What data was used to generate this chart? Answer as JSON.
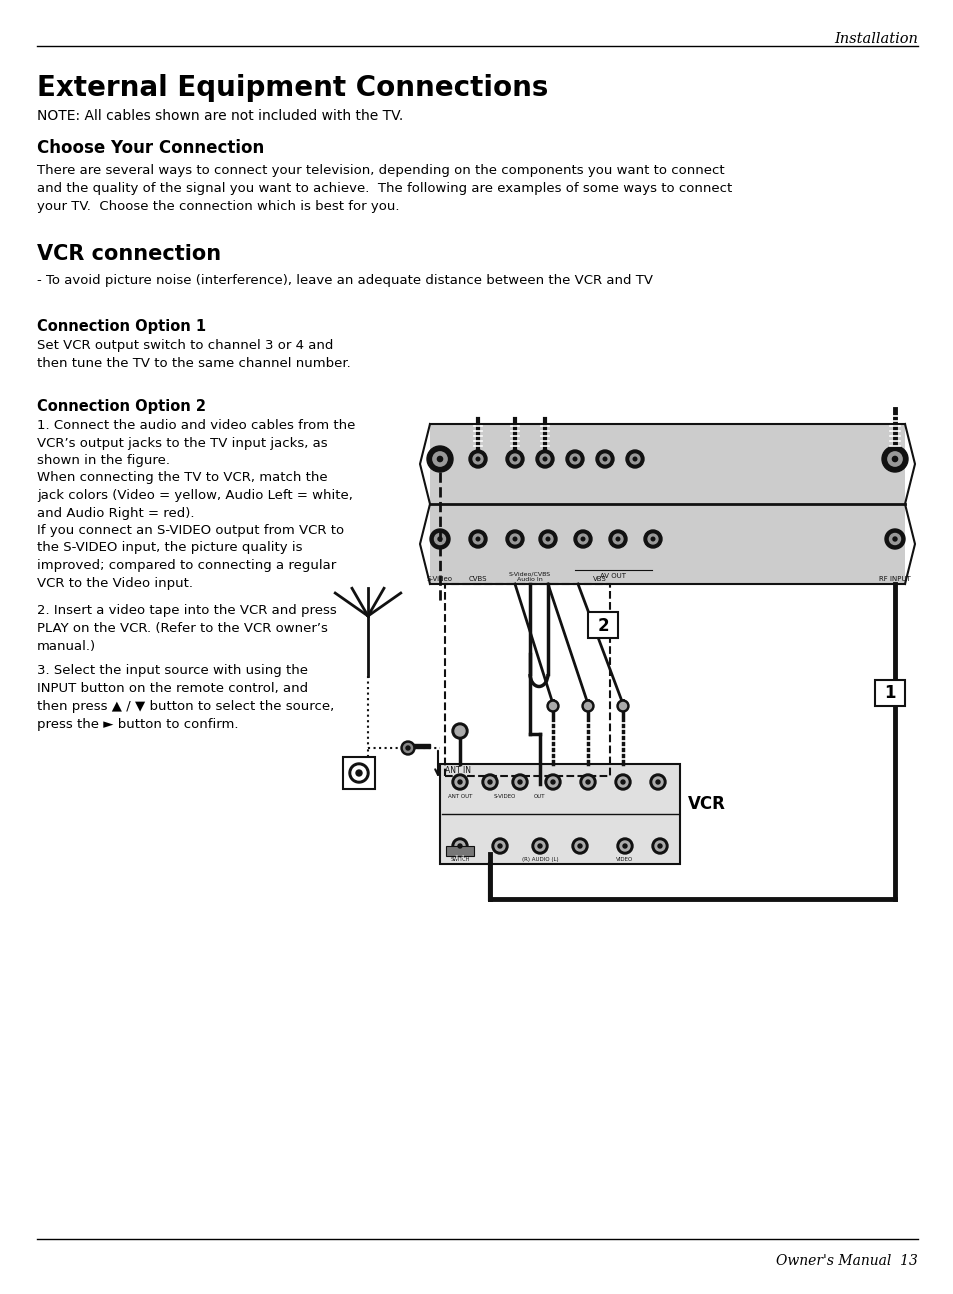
{
  "page_title_italic": "Installation",
  "main_title": "External Equipment Connections",
  "note_text": "NOTE: All cables shown are not included with the TV.",
  "section1_title": "Choose Your Connection",
  "section1_body": "There are several ways to connect your television, depending on the components you want to connect\nand the quality of the signal you want to achieve.  The following are examples of some ways to connect\nyour TV.  Choose the connection which is best for you.",
  "section2_title": "VCR connection",
  "section2_note": "- To avoid picture noise (interference), leave an adequate distance between the VCR and TV",
  "opt1_title": "Connection Option 1",
  "opt1_body": "Set VCR output switch to channel 3 or 4 and\nthen tune the TV to the same channel number.",
  "opt2_title": "Connection Option 2",
  "opt2_body1": "1. Connect the audio and video cables from the\nVCR’s output jacks to the TV input jacks, as\nshown in the figure.\nWhen connecting the TV to VCR, match the\njack colors (Video = yellow, Audio Left = white,\nand Audio Right = red).\nIf you connect an S-VIDEO output from VCR to\nthe S-VIDEO input, the picture quality is\nimproved; compared to connecting a regular\nVCR to the Video input.",
  "opt2_body2": "2. Insert a video tape into the VCR and press\nPLAY on the VCR. (Refer to the VCR owner’s\nmanual.)",
  "opt2_body3": "3. Select the input source with using the\nINPUT button on the remote control, and\nthen press ▲ / ▼ button to select the source,\npress the ► button to confirm.",
  "footer_text": "Owner's Manual  13",
  "bg_color": "#ffffff",
  "text_color": "#000000",
  "header_line_color": "#000000",
  "footer_line_color": "#000000",
  "diagram_bg": "#cccccc",
  "diagram_dark": "#111111",
  "label1": "1",
  "label2": "2",
  "vcr_label": "VCR"
}
